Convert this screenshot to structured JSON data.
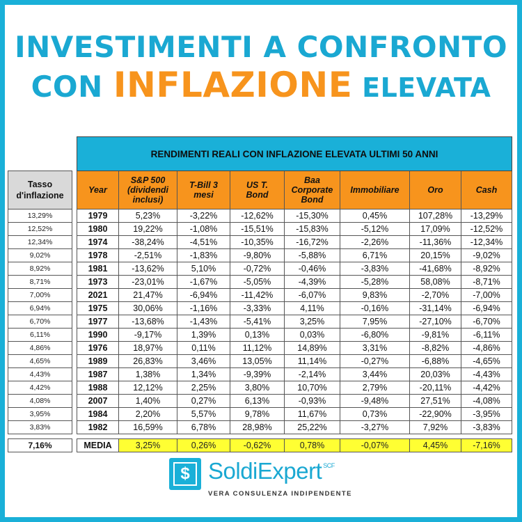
{
  "header": {
    "line1": "INVESTIMENTI A CONFRONTO",
    "line2_prefix": "CON ",
    "line2_highlight": "INFLAZIONE",
    "line2_suffix": " ELEVATA"
  },
  "inflation_column": {
    "header_line1": "Tasso",
    "header_line2": "d'inflazione",
    "values": [
      "13,29%",
      "12,52%",
      "12,34%",
      "9,02%",
      "8,92%",
      "8,71%",
      "7,00%",
      "6,94%",
      "6,70%",
      "6,11%",
      "4,86%",
      "4,65%",
      "4,43%",
      "4,42%",
      "4,08%",
      "3,95%",
      "3,83%"
    ],
    "average": "7,16%"
  },
  "table": {
    "banner": "RENDIMENTI REALI CON INFLAZIONE ELEVATA ULTIMI 50 ANNI",
    "columns": [
      [
        "Year"
      ],
      [
        "S&P 500",
        "(dividendi",
        "inclusi)"
      ],
      [
        "T-Bill 3",
        "mesi"
      ],
      [
        "US T.",
        "Bond"
      ],
      [
        "Baa",
        "Corporate",
        "Bond"
      ],
      [
        "Immobiliare"
      ],
      [
        "Oro"
      ],
      [
        "Cash"
      ]
    ],
    "rows": [
      [
        "1979",
        "5,23%",
        "-3,22%",
        "-12,62%",
        "-15,30%",
        "0,45%",
        "107,28%",
        "-13,29%"
      ],
      [
        "1980",
        "19,22%",
        "-1,08%",
        "-15,51%",
        "-15,83%",
        "-5,12%",
        "17,09%",
        "-12,52%"
      ],
      [
        "1974",
        "-38,24%",
        "-4,51%",
        "-10,35%",
        "-16,72%",
        "-2,26%",
        "-11,36%",
        "-12,34%"
      ],
      [
        "1978",
        "-2,51%",
        "-1,83%",
        "-9,80%",
        "-5,88%",
        "6,71%",
        "20,15%",
        "-9,02%"
      ],
      [
        "1981",
        "-13,62%",
        "5,10%",
        "-0,72%",
        "-0,46%",
        "-3,83%",
        "-41,68%",
        "-8,92%"
      ],
      [
        "1973",
        "-23,01%",
        "-1,67%",
        "-5,05%",
        "-4,39%",
        "-5,28%",
        "58,08%",
        "-8,71%"
      ],
      [
        "2021",
        "21,47%",
        "-6,94%",
        "-11,42%",
        "-6,07%",
        "9,83%",
        "-2,70%",
        "-7,00%"
      ],
      [
        "1975",
        "30,06%",
        "-1,16%",
        "-3,33%",
        "4,11%",
        "-0,16%",
        "-31,14%",
        "-6,94%"
      ],
      [
        "1977",
        "-13,68%",
        "-1,43%",
        "-5,41%",
        "3,25%",
        "7,95%",
        "-27,10%",
        "-6,70%"
      ],
      [
        "1990",
        "-9,17%",
        "1,39%",
        "0,13%",
        "0,03%",
        "-6,80%",
        "-9,81%",
        "-6,11%"
      ],
      [
        "1976",
        "18,97%",
        "0,11%",
        "11,12%",
        "14,89%",
        "3,31%",
        "-8,82%",
        "-4,86%"
      ],
      [
        "1989",
        "26,83%",
        "3,46%",
        "13,05%",
        "11,14%",
        "-0,27%",
        "-6,88%",
        "-4,65%"
      ],
      [
        "1987",
        "1,38%",
        "1,34%",
        "-9,39%",
        "-2,14%",
        "3,44%",
        "20,03%",
        "-4,43%"
      ],
      [
        "1988",
        "12,12%",
        "2,25%",
        "3,80%",
        "10,70%",
        "2,79%",
        "-20,11%",
        "-4,42%"
      ],
      [
        "2007",
        "1,40%",
        "0,27%",
        "6,13%",
        "-0,93%",
        "-9,48%",
        "27,51%",
        "-4,08%"
      ],
      [
        "1984",
        "2,20%",
        "5,57%",
        "9,78%",
        "11,67%",
        "0,73%",
        "-22,90%",
        "-3,95%"
      ],
      [
        "1982",
        "16,59%",
        "6,78%",
        "28,98%",
        "25,22%",
        "-3,27%",
        "7,92%",
        "-3,83%"
      ]
    ],
    "media_row": [
      "MEDIA",
      "3,25%",
      "0,26%",
      "-0,62%",
      "0,78%",
      "-0,07%",
      "4,45%",
      "-7,16%"
    ]
  },
  "logo": {
    "icon_glyph": "$",
    "brand_part1": "Soldi",
    "brand_part2": "Expert",
    "brand_suffix": "SCF",
    "tagline": "VERA CONSULENZA INDIPENDENTE"
  },
  "colors": {
    "accent_blue": "#1ab0d8",
    "accent_orange": "#f7941d",
    "media_yellow": "#ffff33"
  }
}
